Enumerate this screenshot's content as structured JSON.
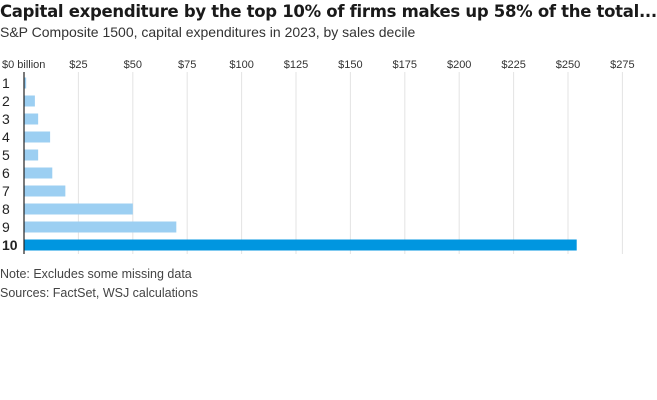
{
  "title": "Capital expenditure by the top 10% of firms makes up 58% of the total...",
  "subtitle": "S&P Composite 1500, capital expenditures in 2023, by sales decile",
  "notes": {
    "note": "Note: Excludes some missing data",
    "sources": "Sources: FactSet, WSJ calculations"
  },
  "colors": {
    "bar": "#9ccff2",
    "highlight": "#0096e0",
    "grid": "#e3e3e3",
    "axis": "#222222"
  },
  "chart_data": {
    "type": "bar",
    "orientation": "horizontal",
    "xlabel": "",
    "ylabel": "",
    "xlim": [
      0,
      275
    ],
    "xticks": [
      0,
      25,
      50,
      75,
      100,
      125,
      150,
      175,
      200,
      225,
      250,
      275
    ],
    "xtick_labels": [
      "$0 billion",
      "$25",
      "$50",
      "$75",
      "$100",
      "$125",
      "$150",
      "$175",
      "$200",
      "$225",
      "$250",
      "$275"
    ],
    "grid": "vertical",
    "categories": [
      "1",
      "2",
      "3",
      "4",
      "5",
      "6",
      "7",
      "8",
      "9",
      "10"
    ],
    "values": [
      1,
      5,
      6.5,
      12,
      6.5,
      13,
      19,
      50,
      70,
      254
    ],
    "highlight_category": "10"
  }
}
